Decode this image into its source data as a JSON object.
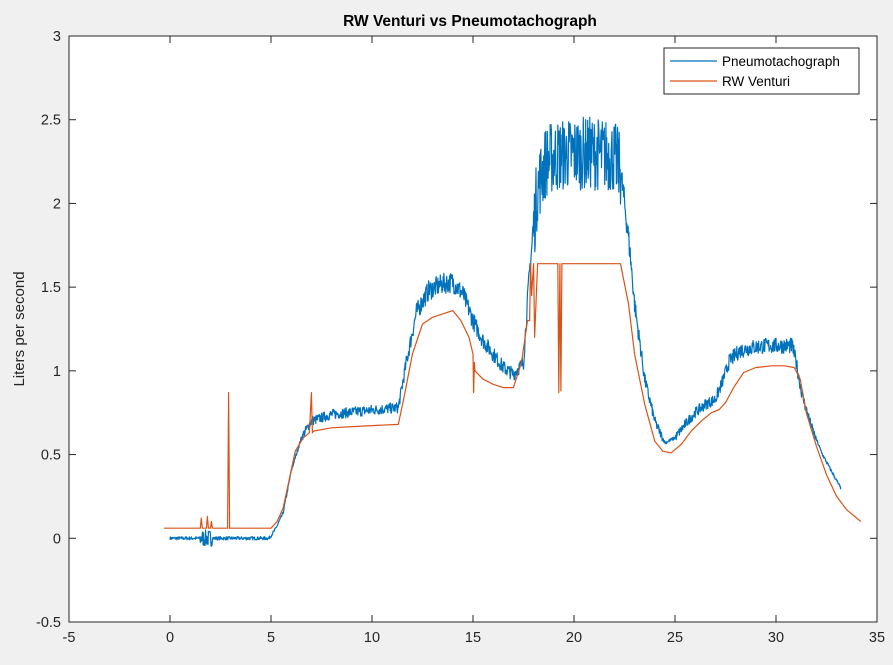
{
  "chart_data": {
    "type": "line",
    "title": "RW Venturi vs Pneumotachograph",
    "xlabel": "",
    "ylabel": "Liters per second",
    "xlim": [
      -5,
      35
    ],
    "ylim": [
      -0.5,
      3
    ],
    "xticks": [
      "-5",
      "0",
      "5",
      "10",
      "15",
      "20",
      "25",
      "30",
      "35"
    ],
    "yticks": [
      "-0.5",
      "0",
      "0.5",
      "1",
      "1.5",
      "2",
      "2.5",
      "3"
    ],
    "grid": false,
    "legend_location": "top-right",
    "series": [
      {
        "name": "Pneumotachograph",
        "color": "#0072BD",
        "noisy": true,
        "x": [
          0,
          1.5,
          2.0,
          4.9,
          5.2,
          5.6,
          6.0,
          6.5,
          7.0,
          8.0,
          9.5,
          11.3,
          11.7,
          12.2,
          12.8,
          13.5,
          14.0,
          14.5,
          15.0,
          15.5,
          16.0,
          16.5,
          17.0,
          17.5,
          17.8,
          18.2,
          18.6,
          19.0,
          20.0,
          21.0,
          22.0,
          22.3,
          22.7,
          23.0,
          23.5,
          24.0,
          24.5,
          25.0,
          25.5,
          26.0,
          26.5,
          27.0,
          27.3,
          27.7,
          28.2,
          28.8,
          29.5,
          30.3,
          30.8,
          31.0,
          31.3,
          31.8,
          32.3,
          33.2
        ],
        "y": [
          0.0,
          0.0,
          0.0,
          0.0,
          0.05,
          0.15,
          0.4,
          0.6,
          0.7,
          0.74,
          0.76,
          0.78,
          1.05,
          1.35,
          1.48,
          1.52,
          1.53,
          1.46,
          1.3,
          1.18,
          1.1,
          1.02,
          0.98,
          1.05,
          1.6,
          2.1,
          2.25,
          2.28,
          2.3,
          2.3,
          2.28,
          2.2,
          1.8,
          1.4,
          0.95,
          0.7,
          0.57,
          0.6,
          0.68,
          0.75,
          0.8,
          0.83,
          0.92,
          1.06,
          1.12,
          1.14,
          1.15,
          1.15,
          1.15,
          1.05,
          0.85,
          0.65,
          0.5,
          0.3
        ]
      },
      {
        "name": "RW Venturi",
        "color": "#D95319",
        "noisy": false,
        "x": [
          -0.3,
          1.5,
          1.55,
          1.6,
          1.8,
          1.85,
          1.9,
          2.0,
          2.05,
          2.1,
          2.85,
          2.9,
          2.95,
          5.0,
          5.3,
          5.6,
          5.9,
          6.2,
          6.6,
          6.9,
          7.0,
          7.05,
          7.1,
          8.0,
          9.5,
          11.3,
          11.6,
          12.0,
          12.5,
          13.0,
          13.5,
          14.0,
          14.4,
          14.8,
          15.0,
          15.03,
          15.07,
          15.1,
          15.5,
          16.0,
          16.5,
          17.0,
          17.4,
          17.7,
          17.8,
          17.85,
          17.9,
          18.0,
          18.05,
          18.2,
          19.2,
          19.25,
          19.3,
          19.35,
          19.4,
          22.3,
          22.7,
          23.0,
          23.5,
          24.0,
          24.4,
          24.8,
          25.3,
          25.8,
          26.3,
          26.8,
          27.2,
          27.5,
          27.9,
          28.4,
          29.0,
          29.8,
          30.4,
          30.9,
          31.2,
          31.5,
          32.0,
          32.5,
          33.0,
          33.5,
          34.2
        ],
        "y": [
          0.06,
          0.06,
          0.12,
          0.06,
          0.06,
          0.13,
          0.06,
          0.06,
          0.1,
          0.06,
          0.06,
          0.87,
          0.06,
          0.06,
          0.1,
          0.18,
          0.35,
          0.52,
          0.6,
          0.63,
          0.87,
          0.63,
          0.64,
          0.66,
          0.67,
          0.68,
          0.85,
          1.1,
          1.28,
          1.32,
          1.34,
          1.36,
          1.3,
          1.2,
          1.1,
          0.87,
          1.05,
          1.0,
          0.95,
          0.92,
          0.9,
          0.9,
          1.05,
          1.3,
          1.3,
          1.64,
          1.45,
          1.64,
          1.2,
          1.64,
          1.64,
          0.87,
          1.64,
          0.88,
          1.64,
          1.64,
          1.4,
          1.1,
          0.8,
          0.58,
          0.52,
          0.51,
          0.56,
          0.64,
          0.7,
          0.75,
          0.77,
          0.81,
          0.9,
          0.99,
          1.02,
          1.03,
          1.03,
          1.02,
          0.95,
          0.75,
          0.55,
          0.38,
          0.25,
          0.17,
          0.1
        ]
      }
    ]
  }
}
